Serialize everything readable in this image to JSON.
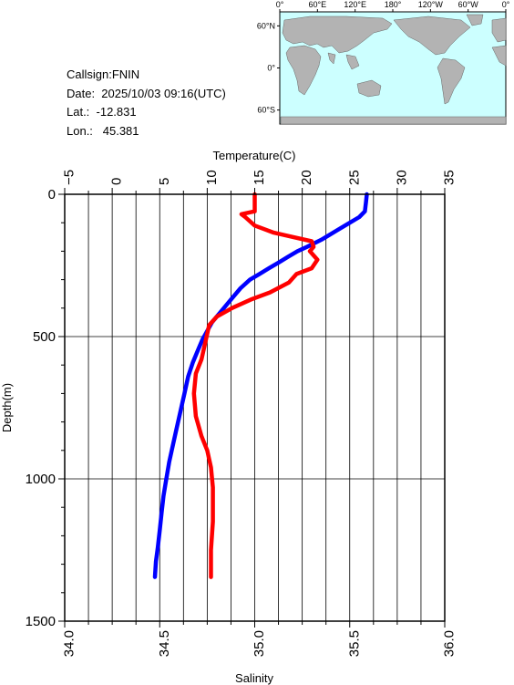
{
  "station": {
    "callsign": "Callsign:FNIN",
    "date": "Date:  2025/10/03 09:16(UTC)",
    "lat": "Lat.:  -12.831",
    "lon": "Lon.:   45.381"
  },
  "map": {
    "lon_labels": [
      "0°",
      "60°E",
      "120°E",
      "180°",
      "120°W",
      "60°W",
      "0°"
    ],
    "lat_labels": [
      "60°N",
      "0°",
      "60°S"
    ],
    "station_marker_color": "#ff0000",
    "ocean_color": "#ccffff",
    "land_color": "#b3b3b3"
  },
  "chart_data": {
    "type": "line",
    "top_axis": {
      "label": "Temperature(C)",
      "range": [
        -5,
        35
      ],
      "ticks": [
        "-5",
        "0",
        "5",
        "10",
        "15",
        "20",
        "25",
        "30",
        "35"
      ]
    },
    "bottom_axis": {
      "label": "Salinity",
      "range": [
        34.0,
        36.0
      ],
      "ticks": [
        "34.0",
        "34.5",
        "35.0",
        "35.5",
        "36.0"
      ]
    },
    "y_axis": {
      "label": "Depth(m)",
      "range": [
        0,
        1500
      ],
      "inverted": true,
      "ticks": [
        "0",
        "500",
        "1000",
        "1500"
      ]
    },
    "grid": true,
    "series": [
      {
        "name": "",
        "axis": "temperature",
        "color": "#0000ff",
        "points": [
          [
            26.8,
            0
          ],
          [
            26.7,
            30
          ],
          [
            26.6,
            60
          ],
          [
            26.0,
            80
          ],
          [
            25.0,
            100
          ],
          [
            24.0,
            120
          ],
          [
            23.0,
            140
          ],
          [
            22.0,
            160
          ],
          [
            20.5,
            185
          ],
          [
            19.5,
            200
          ],
          [
            18.5,
            220
          ],
          [
            17.5,
            240
          ],
          [
            16.5,
            260
          ],
          [
            15.5,
            280
          ],
          [
            14.5,
            300
          ],
          [
            13.5,
            330
          ],
          [
            12.5,
            370
          ],
          [
            11.5,
            410
          ],
          [
            10.5,
            450
          ],
          [
            10.0,
            480
          ],
          [
            9.5,
            510
          ],
          [
            9.0,
            550
          ],
          [
            8.5,
            590
          ],
          [
            8.0,
            640
          ],
          [
            7.6,
            700
          ],
          [
            7.2,
            760
          ],
          [
            6.8,
            820
          ],
          [
            6.4,
            880
          ],
          [
            6.0,
            940
          ],
          [
            5.7,
            1000
          ],
          [
            5.4,
            1060
          ],
          [
            5.2,
            1120
          ],
          [
            5.0,
            1180
          ],
          [
            4.8,
            1240
          ],
          [
            4.6,
            1290
          ],
          [
            4.5,
            1345
          ]
        ]
      },
      {
        "name": "",
        "axis": "salinity",
        "color": "#ff0000",
        "points": [
          [
            35.0,
            0
          ],
          [
            35.0,
            60
          ],
          [
            34.93,
            70
          ],
          [
            34.95,
            80
          ],
          [
            35.0,
            110
          ],
          [
            35.1,
            135
          ],
          [
            35.2,
            150
          ],
          [
            35.3,
            165
          ],
          [
            35.31,
            185
          ],
          [
            35.29,
            200
          ],
          [
            35.33,
            230
          ],
          [
            35.3,
            260
          ],
          [
            35.22,
            280
          ],
          [
            35.18,
            310
          ],
          [
            35.08,
            345
          ],
          [
            34.98,
            370
          ],
          [
            34.88,
            400
          ],
          [
            34.8,
            430
          ],
          [
            34.76,
            460
          ],
          [
            34.74,
            520
          ],
          [
            34.72,
            580
          ],
          [
            34.69,
            630
          ],
          [
            34.68,
            700
          ],
          [
            34.69,
            780
          ],
          [
            34.72,
            850
          ],
          [
            34.75,
            900
          ],
          [
            34.77,
            960
          ],
          [
            34.78,
            1030
          ],
          [
            34.78,
            1150
          ],
          [
            34.77,
            1250
          ],
          [
            34.77,
            1345
          ]
        ]
      }
    ]
  }
}
